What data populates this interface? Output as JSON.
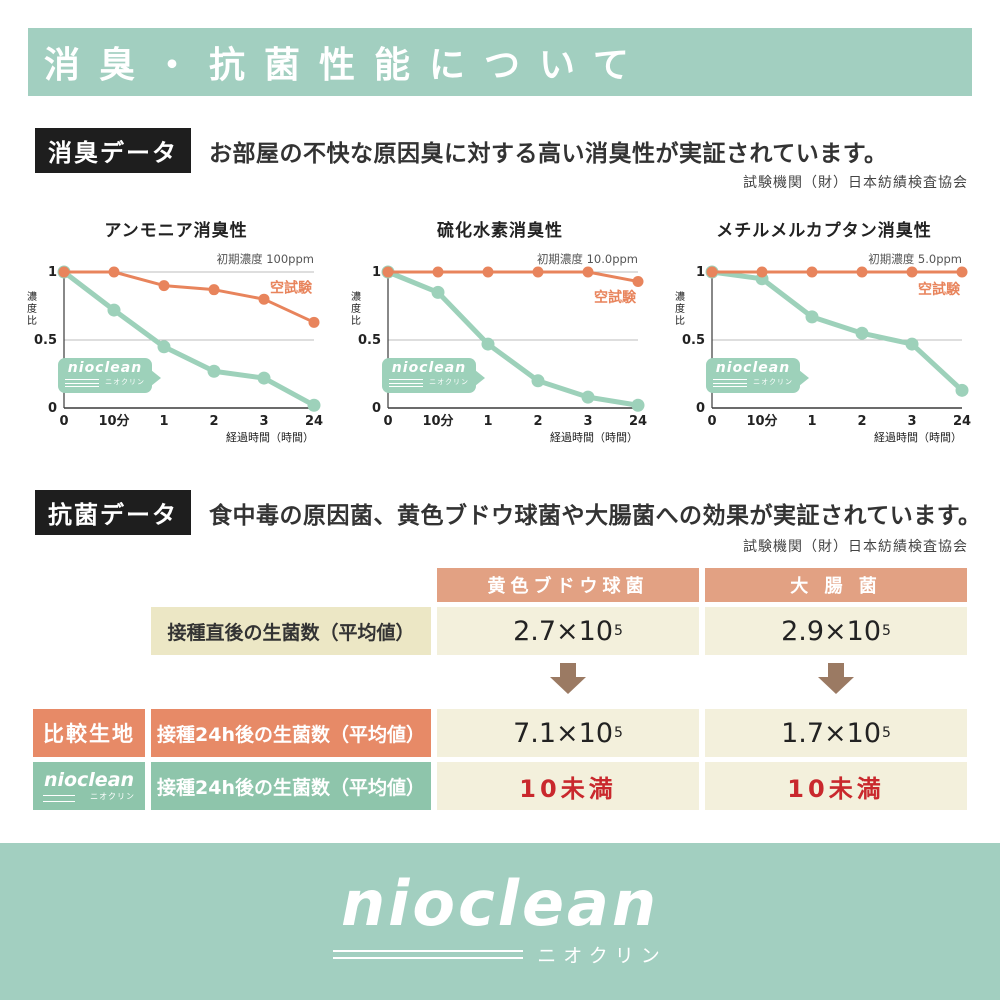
{
  "colors": {
    "brand_green": "#a2cfc0",
    "chart_green": "#9dd1ba",
    "chart_orange": "#e8845c",
    "table_header_salmon": "#e2a183",
    "accent_orange": "#e78a67",
    "row_green": "#8ec5ab",
    "cream_label": "#ece7c5",
    "cream_value": "#f3f0dc",
    "alert_red": "#c9282d",
    "arrow_brown": "#9b7a63",
    "badge_black": "#1e1e1e"
  },
  "header": {
    "title": "消臭・抗菌性能について"
  },
  "logo": {
    "name": "nioclean",
    "sub": "ニオクリン"
  },
  "deodorant_section": {
    "badge": "消臭データ",
    "description": "お部屋の不快な原因臭に対する高い消臭性が実証されています。",
    "agency": "試験機関（財）日本紡績検査協会"
  },
  "chart_data": [
    {
      "type": "line",
      "title": "アンモニア消臭性",
      "annotation": "初期濃度 100ppm",
      "ylabel": "濃度比",
      "xlabel": "経過時間（時間）",
      "x_ticks": [
        "0",
        "10分",
        "1",
        "2",
        "3",
        "24"
      ],
      "y_ticks": [
        "1",
        "0.5",
        "0"
      ],
      "ylim": [
        0,
        1
      ],
      "legend_label": "空試験",
      "legend_y": 0.85,
      "series": [
        {
          "name": "nioclean",
          "color": "#9dd1ba",
          "values": [
            1,
            0.72,
            0.45,
            0.27,
            0.22,
            0.02
          ]
        },
        {
          "name": "空試験",
          "color": "#e8845c",
          "values": [
            1,
            1,
            0.9,
            0.87,
            0.8,
            0.63
          ]
        }
      ]
    },
    {
      "type": "line",
      "title": "硫化水素消臭性",
      "annotation": "初期濃度 10.0ppm",
      "ylabel": "濃度比",
      "xlabel": "経過時間（時間）",
      "x_ticks": [
        "0",
        "10分",
        "1",
        "2",
        "3",
        "24"
      ],
      "y_ticks": [
        "1",
        "0.5",
        "0"
      ],
      "ylim": [
        0,
        1
      ],
      "legend_label": "空試験",
      "legend_y": 0.78,
      "series": [
        {
          "name": "nioclean",
          "color": "#9dd1ba",
          "values": [
            1,
            0.85,
            0.47,
            0.2,
            0.08,
            0.02
          ]
        },
        {
          "name": "空試験",
          "color": "#e8845c",
          "values": [
            1,
            1,
            1,
            1,
            1,
            0.93
          ]
        }
      ]
    },
    {
      "type": "line",
      "title": "メチルメルカプタン消臭性",
      "annotation": "初期濃度 5.0ppm",
      "ylabel": "濃度比",
      "xlabel": "経過時間（時間）",
      "x_ticks": [
        "0",
        "10分",
        "1",
        "2",
        "3",
        "24"
      ],
      "y_ticks": [
        "1",
        "0.5",
        "0"
      ],
      "ylim": [
        0,
        1
      ],
      "legend_label": "空試験",
      "legend_y": 0.84,
      "series": [
        {
          "name": "nioclean",
          "color": "#9dd1ba",
          "values": [
            1,
            0.95,
            0.67,
            0.55,
            0.47,
            0.13
          ]
        },
        {
          "name": "空試験",
          "color": "#e8845c",
          "values": [
            1,
            1,
            1,
            1,
            1,
            1
          ]
        }
      ]
    }
  ],
  "antibacterial_section": {
    "badge": "抗菌データ",
    "description": "食中毒の原因菌、黄色ブドウ球菌や大腸菌への効果が実証されています。",
    "agency": "試験機関（財）日本紡績検査協会",
    "table": {
      "col_headers": [
        "黄色ブドウ球菌",
        "大 腸 菌"
      ],
      "row_initial": {
        "label": "接種直後の生菌数（平均値）",
        "values": [
          {
            "base": "2.7×10",
            "exp": "5"
          },
          {
            "base": "2.9×10",
            "exp": "5"
          }
        ]
      },
      "row_compare": {
        "side_label": "比較生地",
        "label": "接種24h後の生菌数（平均値）",
        "values": [
          {
            "base": "7.1×10",
            "exp": "5"
          },
          {
            "base": "1.7×10",
            "exp": "5"
          }
        ]
      },
      "row_nioclean": {
        "label": "接種24h後の生菌数（平均値）",
        "values": [
          {
            "base": "10未満"
          },
          {
            "base": "10未満"
          }
        ]
      }
    }
  }
}
